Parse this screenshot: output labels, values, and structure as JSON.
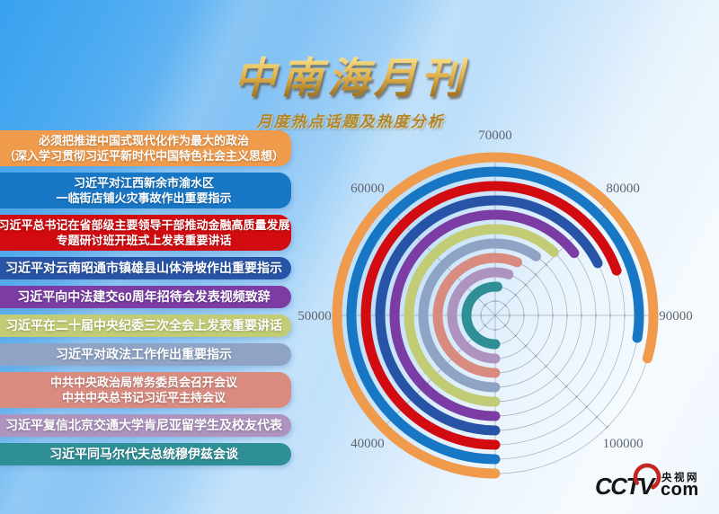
{
  "header": {
    "title": "中南海月刊",
    "subtitle": "月度热点话题及热度分析"
  },
  "topics": [
    {
      "lines": [
        "必须把推进中国式现代化作为最大的政治",
        "（深入学习贯彻习近平新时代中国特色社会主义思想）"
      ],
      "color": "#F09B4C",
      "value": 93500
    },
    {
      "lines": [
        "习近平对江西新余市渝水区",
        "一临街店铺火灾事故作出重要指示"
      ],
      "color": "#1877C5",
      "value": 92000
    },
    {
      "lines": [
        "习近平总书记在省部级主要领导干部推动金融高质量发展",
        "专题研讨班开班式上发表重要讲话"
      ],
      "color": "#D20B10",
      "value": 85500
    },
    {
      "lines": [
        "习近平对云南昭通市镇雄县山体滑坡作出重要指示"
      ],
      "color": "#2854A7",
      "value": 84000
    },
    {
      "lines": [
        "习近平向中法建交60周年招待会发表视频致辞"
      ],
      "color": "#7B3CA4",
      "value": 81500
    },
    {
      "lines": [
        "习近平在二十届中央纪委三次全会上发表重要讲话"
      ],
      "color": "#C2CC74",
      "value": 79500
    },
    {
      "lines": [
        "习近平对政法工作作出重要指示"
      ],
      "color": "#8FA3C5",
      "value": 77700
    },
    {
      "lines": [
        "中共中央政治局常务委员会召开会议",
        "中共中央总书记习近平主持会议"
      ],
      "color": "#D98B80",
      "value": 75000
    },
    {
      "lines": [
        "习近平复信北京交通大学肯尼亚留学生及校友代表"
      ],
      "color": "#AD93BD",
      "value": 74000
    },
    {
      "lines": [
        "习近平同马尔代夫总统穆伊兹会谈"
      ],
      "color": "#2F8F97",
      "value": 71000
    }
  ],
  "chart_data": {
    "type": "bar",
    "coordinate": "polar",
    "title": "月度热点话题及热度分析",
    "categories": [
      "必须把推进中国式现代化作为最大的政治（深入学习贯彻习近平新时代中国特色社会主义思想）",
      "习近平对江西新余市渝水区一临街店铺火灾事故作出重要指示",
      "习近平总书记在省部级主要领导干部推动金融高质量发展专题研讨班开班式上发表重要讲话",
      "习近平对云南昭通市镇雄县山体滑坡作出重要指示",
      "习近平向中法建交60周年招待会发表视频致辞",
      "习近平在二十届中央纪委三次全会上发表重要讲话",
      "习近平对政法工作作出重要指示",
      "中共中央政治局常务委员会召开会议 中共中央总书记习近平主持会议",
      "习近平复信北京交通大学肯尼亚留学生及校友代表",
      "习近平同马尔代夫总统穆伊兹会谈"
    ],
    "values": [
      93500,
      92000,
      85500,
      84000,
      81500,
      79500,
      77700,
      75000,
      74000,
      71000
    ],
    "colors": [
      "#F09B4C",
      "#1877C5",
      "#D20B10",
      "#2854A7",
      "#7B3CA4",
      "#C2CC74",
      "#8FA3C5",
      "#D98B80",
      "#AD93BD",
      "#2F8F97"
    ],
    "angle_axis": {
      "min": 30000,
      "max": 110000,
      "start_angle": "bottom",
      "direction": "clockwise",
      "tick_labels": [
        "40000",
        "50000",
        "60000",
        "70000",
        "80000",
        "90000",
        "100000"
      ],
      "tick_values": [
        40000,
        50000,
        60000,
        70000,
        80000,
        90000,
        100000
      ]
    },
    "grid": {
      "rings": 11,
      "spokes": 8
    },
    "legend": "none"
  },
  "logo": {
    "cctv": "CCTV",
    "cn": "央视网",
    "com": "com"
  }
}
